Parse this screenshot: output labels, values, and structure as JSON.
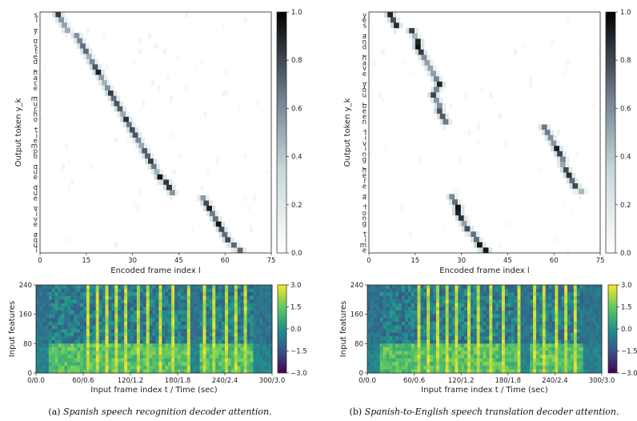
{
  "captions": [
    {
      "prefix": "(a) ",
      "text": "Spanish speech recognition decoder attention."
    },
    {
      "prefix": "(b) ",
      "text": "Spanish-to-English speech translation decoder attention."
    }
  ],
  "chart_data": [
    {
      "type": "heatmap",
      "panel": "a-attention",
      "xlabel": "Encoded frame index l",
      "ylabel": "Output token y_k",
      "x_ticks": [
        "0",
        "15",
        "30",
        "45",
        "60",
        "75"
      ],
      "xlim": [
        0,
        75
      ],
      "colorbar": {
        "min": 0.0,
        "max": 1.0,
        "ticks": [
          "0.0",
          "0.2",
          "0.4",
          "0.6",
          "0.8",
          "1.0"
        ],
        "colormap": "bone_r"
      },
      "y_tokens": [
        "s",
        "í",
        "_",
        "y",
        "_",
        "u",
        "s",
        "t",
        "e",
        "d",
        "_",
        "h",
        "a",
        "c",
        "e",
        "_",
        "m",
        "u",
        "c",
        "h",
        "o",
        "_",
        "t",
        "i",
        "e",
        "m",
        "p",
        "o",
        "_",
        "q",
        "u",
        "e",
        "_",
        "q",
        "u",
        "e",
        "_",
        "v",
        "i",
        "v",
        "e",
        "_",
        "a",
        "q",
        "u",
        "í"
      ],
      "attention_path": [
        [
          5,
          0
        ],
        [
          6,
          1
        ],
        [
          7,
          2
        ],
        [
          8,
          3
        ],
        [
          11,
          4
        ],
        [
          12,
          5
        ],
        [
          13,
          6
        ],
        [
          14,
          7
        ],
        [
          15,
          8
        ],
        [
          16,
          9
        ],
        [
          17,
          10
        ],
        [
          18,
          11
        ],
        [
          19,
          12
        ],
        [
          20,
          13
        ],
        [
          21,
          14
        ],
        [
          22,
          15
        ],
        [
          23,
          16
        ],
        [
          24,
          17
        ],
        [
          25,
          18
        ],
        [
          26,
          19
        ],
        [
          27,
          20
        ],
        [
          28,
          21
        ],
        [
          29,
          22
        ],
        [
          30,
          23
        ],
        [
          31,
          24
        ],
        [
          32,
          25
        ],
        [
          33,
          26
        ],
        [
          34,
          27
        ],
        [
          35,
          28
        ],
        [
          36,
          29
        ],
        [
          37,
          30
        ],
        [
          38,
          31
        ],
        [
          40,
          32
        ],
        [
          41,
          33
        ],
        [
          42,
          34
        ],
        [
          52,
          35
        ],
        [
          53,
          36
        ],
        [
          54,
          37
        ],
        [
          55,
          38
        ],
        [
          56,
          39
        ],
        [
          57,
          40
        ],
        [
          58,
          41
        ],
        [
          59,
          42
        ],
        [
          60,
          43
        ],
        [
          62,
          44
        ],
        [
          64,
          45
        ]
      ]
    },
    {
      "type": "heatmap",
      "panel": "b-attention",
      "xlabel": "Encoded frame index l",
      "ylabel": "Output token y_k",
      "x_ticks": [
        "0",
        "15",
        "30",
        "45",
        "60",
        "75"
      ],
      "xlim": [
        0,
        75
      ],
      "colorbar": {
        "min": 0.0,
        "max": 1.0,
        "ticks": [
          "0.0",
          "0.2",
          "0.4",
          "0.6",
          "0.8",
          "1.0"
        ],
        "colormap": "bone_r"
      },
      "y_tokens": [
        "y",
        "e",
        "s",
        "_",
        "a",
        "n",
        "d",
        "_",
        "h",
        "a",
        "v",
        "e",
        "_",
        "y",
        "o",
        "u",
        "_",
        "b",
        "e",
        "e",
        "n",
        "_",
        "l",
        "i",
        "v",
        "i",
        "n",
        "g",
        "_",
        "h",
        "e",
        "r",
        "e",
        "_",
        "a",
        "_",
        "l",
        "o",
        "n",
        "g",
        "_",
        "t",
        "i",
        "m",
        "e"
      ],
      "attention_path": [
        [
          6,
          0
        ],
        [
          7,
          1
        ],
        [
          8,
          2
        ],
        [
          13,
          3
        ],
        [
          14,
          4
        ],
        [
          15,
          5
        ],
        [
          15,
          6
        ],
        [
          16,
          7
        ],
        [
          17,
          8
        ],
        [
          18,
          9
        ],
        [
          19,
          10
        ],
        [
          20,
          11
        ],
        [
          21,
          12
        ],
        [
          22,
          13
        ],
        [
          21,
          14
        ],
        [
          20,
          15
        ],
        [
          21,
          16
        ],
        [
          22,
          17
        ],
        [
          22,
          18
        ],
        [
          23,
          19
        ],
        [
          24,
          20
        ],
        [
          56,
          21
        ],
        [
          57,
          22
        ],
        [
          58,
          23
        ],
        [
          59,
          24
        ],
        [
          60,
          25
        ],
        [
          61,
          26
        ],
        [
          62,
          27
        ],
        [
          62,
          28
        ],
        [
          63,
          29
        ],
        [
          64,
          30
        ],
        [
          65,
          31
        ],
        [
          66,
          32
        ],
        [
          68,
          33
        ],
        [
          26,
          34
        ],
        [
          27,
          35
        ],
        [
          28,
          36
        ],
        [
          28,
          37
        ],
        [
          29,
          38
        ],
        [
          30,
          39
        ],
        [
          31,
          40
        ],
        [
          33,
          41
        ],
        [
          34,
          42
        ],
        [
          35,
          43
        ],
        [
          37,
          44
        ]
      ]
    },
    {
      "type": "heatmap",
      "panel": "a-features",
      "xlabel": "Input frame index t / Time (sec)",
      "ylabel": "Input features",
      "x_ticks": [
        "0/0.0",
        "60/0.6",
        "120/1.2",
        "180/1.8",
        "240/2.4",
        "300/3.0"
      ],
      "xlim": [
        0,
        300
      ],
      "y_ticks": [
        "0",
        "80",
        "160",
        "240"
      ],
      "ylim": [
        0,
        240
      ],
      "colorbar": {
        "min": -3.0,
        "max": 3.0,
        "ticks": [
          "3.0",
          "1.5",
          "0.0",
          "−1.5",
          "−3.0"
        ],
        "colormap": "viridis"
      },
      "voiced_onsets": [
        62,
        74,
        86,
        98,
        112,
        128,
        140,
        156,
        172,
        190,
        212,
        222,
        238,
        250,
        262
      ]
    },
    {
      "type": "heatmap",
      "panel": "b-features",
      "xlabel": "Input frame index t / Time (sec)",
      "ylabel": "Input features",
      "x_ticks": [
        "0/0.0",
        "60/0.6",
        "120/1.2",
        "180/1.8",
        "240/2.4",
        "300/3.0"
      ],
      "xlim": [
        0,
        300
      ],
      "y_ticks": [
        "0",
        "80",
        "160",
        "240"
      ],
      "ylim": [
        0,
        240
      ],
      "colorbar": {
        "min": -3.0,
        "max": 3.0,
        "ticks": [
          "3.0",
          "1.5",
          "0.0",
          "−1.5",
          "−3.0"
        ],
        "colormap": "viridis"
      },
      "voiced_onsets": [
        62,
        74,
        86,
        98,
        112,
        128,
        140,
        156,
        172,
        190,
        212,
        222,
        238,
        250,
        262
      ]
    }
  ]
}
